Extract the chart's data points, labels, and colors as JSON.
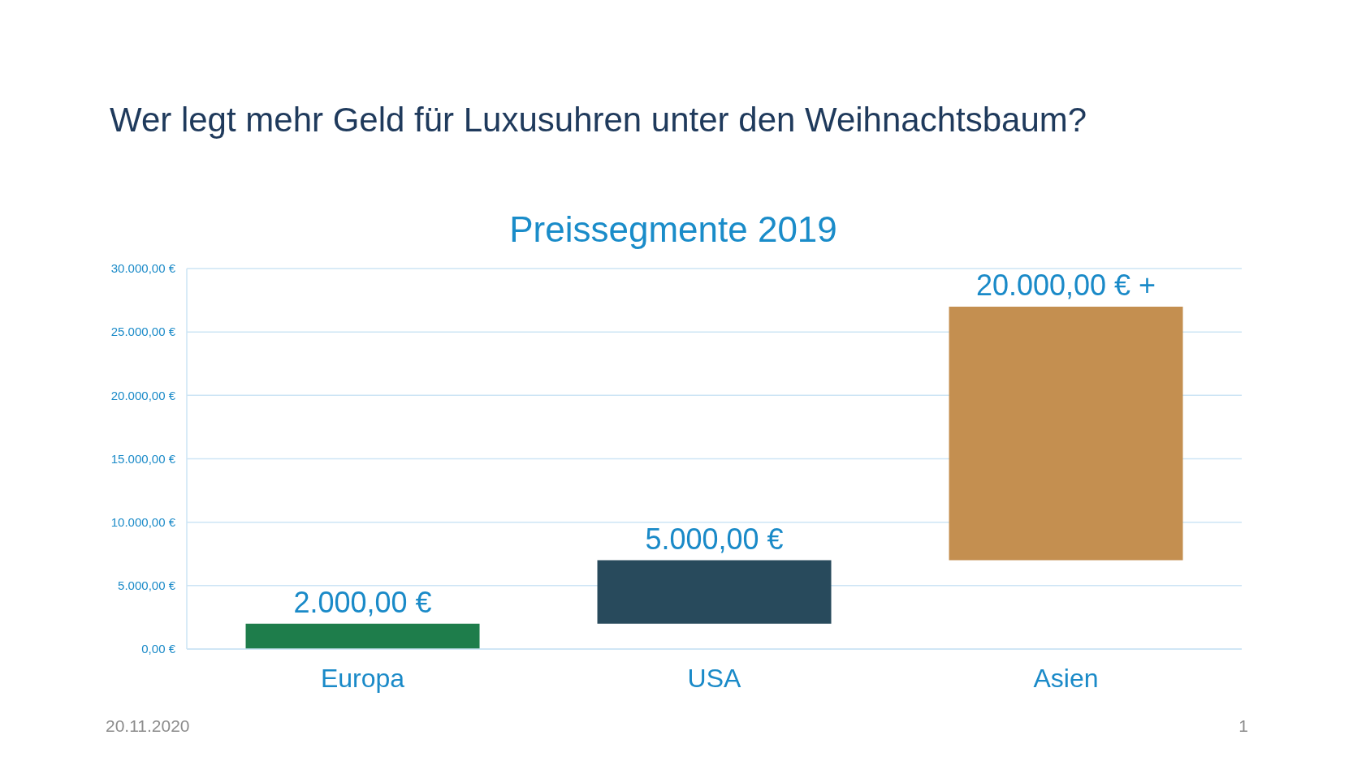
{
  "chart_data": {
    "type": "bar",
    "title": "Wer legt mehr Geld für Luxusuhren unter den Weihnachtsbaum?",
    "subtitle": "Preissegmente 2019",
    "categories": [
      "Europa",
      "USA",
      "Asien"
    ],
    "values": [
      2000,
      5000,
      20000
    ],
    "base": [
      0,
      2000,
      7000
    ],
    "colors": [
      "#1e7d4b",
      "#284a5c",
      "#c48f50"
    ],
    "value_labels": [
      "2.000,00 €",
      "5.000,00 €",
      "20.000,00 € +"
    ],
    "ylim": [
      0,
      30000
    ],
    "yticks": [
      {
        "value": 0,
        "label": "0,00 €"
      },
      {
        "value": 5000,
        "label": "5.000,00 €"
      },
      {
        "value": 10000,
        "label": "10.000,00 €"
      },
      {
        "value": 15000,
        "label": "15.000,00 €"
      },
      {
        "value": 20000,
        "label": "20.000,00 €"
      },
      {
        "value": 25000,
        "label": "25.000,00 €"
      },
      {
        "value": 30000,
        "label": "30.000,00 €"
      }
    ],
    "grid": "y",
    "annotations": [
      "20.11.2020",
      "1"
    ]
  }
}
